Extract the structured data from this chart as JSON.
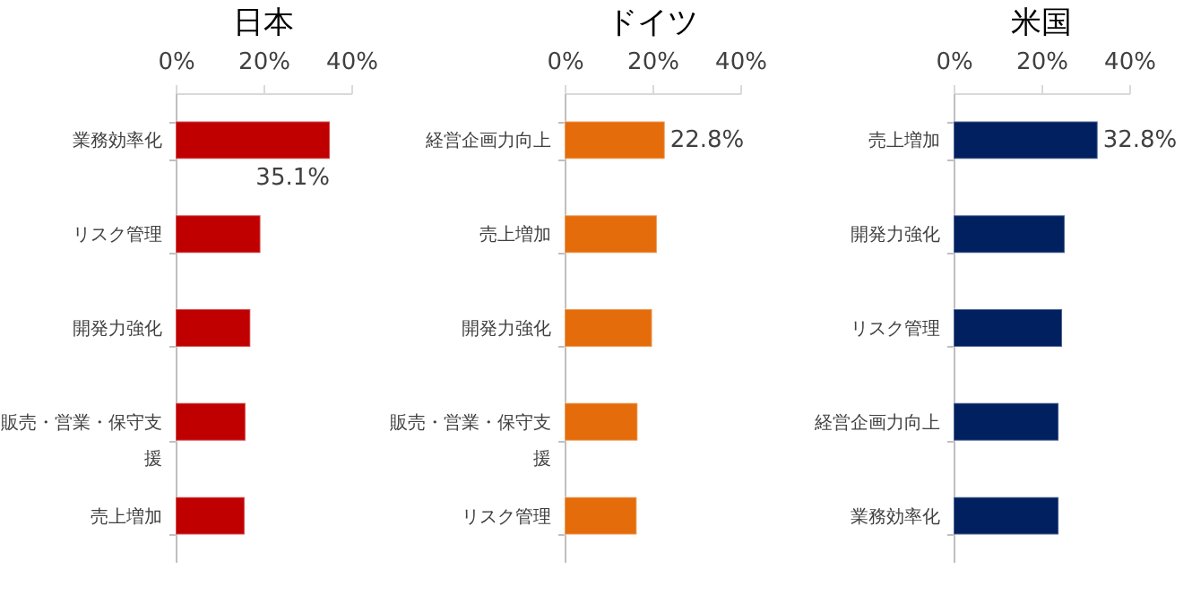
{
  "chart_data": [
    {
      "type": "bar",
      "orientation": "horizontal",
      "title": "日本",
      "categories": [
        "業務効率化",
        "リスク管理",
        "開発力強化",
        "販売・営業・保守支援",
        "売上増加"
      ],
      "values": [
        35.1,
        19.3,
        17.0,
        15.9,
        15.7
      ],
      "value_labels": [
        "35.1%",
        null,
        null,
        null,
        null
      ],
      "color": "#c00000",
      "xlim": [
        0,
        40
      ],
      "xticks": [
        {
          "value": 0,
          "label": "0%"
        },
        {
          "value": 20,
          "label": "20%"
        },
        {
          "value": 40,
          "label": "40%"
        }
      ]
    },
    {
      "type": "bar",
      "orientation": "horizontal",
      "title": "ドイツ",
      "categories": [
        "経営企画力向上",
        "売上増加",
        "開発力強化",
        "販売・営業・保守支援",
        "リスク管理"
      ],
      "values": [
        22.8,
        21.0,
        19.9,
        16.6,
        16.4
      ],
      "value_labels": [
        "22.8%",
        null,
        null,
        null,
        null
      ],
      "color": "#e46c0a",
      "xlim": [
        0,
        40
      ],
      "xticks": [
        {
          "value": 0,
          "label": "0%"
        },
        {
          "value": 20,
          "label": "20%"
        },
        {
          "value": 40,
          "label": "40%"
        }
      ]
    },
    {
      "type": "bar",
      "orientation": "horizontal",
      "title": "米国",
      "categories": [
        "売上増加",
        "開発力強化",
        "リスク管理",
        "経営企画力向上",
        "業務効率化"
      ],
      "values": [
        32.8,
        25.3,
        24.7,
        23.9,
        23.9
      ],
      "value_labels": [
        "32.8%",
        null,
        null,
        null,
        null
      ],
      "color": "#002060",
      "xlim": [
        0,
        40
      ],
      "xticks": [
        {
          "value": 0,
          "label": "0%"
        },
        {
          "value": 20,
          "label": "20%"
        },
        {
          "value": 40,
          "label": "40%"
        }
      ]
    }
  ]
}
